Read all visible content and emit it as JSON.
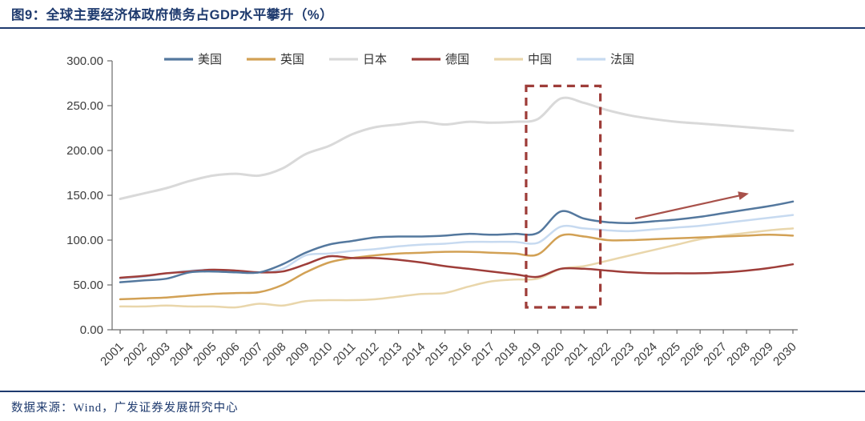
{
  "header": {
    "title": "图9：全球主要经济体政府债务占GDP水平攀升（%）"
  },
  "footer": {
    "source": "数据来源：Wind，广发证券发展研究中心"
  },
  "chart_data": {
    "type": "line",
    "title": "全球主要经济体政府债务占GDP水平攀升（%）",
    "figure_label": "图9",
    "xlabel": "",
    "ylabel": "",
    "ylim": [
      0,
      300
    ],
    "y_ticks": [
      0,
      50,
      100,
      150,
      200,
      250,
      300
    ],
    "y_tick_labels": [
      "0.00",
      "50.00",
      "100.00",
      "150.00",
      "200.00",
      "250.00",
      "300.00"
    ],
    "grid": false,
    "legend_position": "top",
    "x": [
      2001,
      2002,
      2003,
      2004,
      2005,
      2006,
      2007,
      2008,
      2009,
      2010,
      2011,
      2012,
      2013,
      2014,
      2015,
      2016,
      2017,
      2018,
      2019,
      2020,
      2021,
      2022,
      2023,
      2024,
      2025,
      2026,
      2027,
      2028,
      2029,
      2030
    ],
    "series": [
      {
        "id": "us",
        "name": "美国",
        "color": "#54789e",
        "values": [
          53,
          55,
          57,
          64,
          65,
          64,
          64,
          73,
          86,
          95,
          99,
          103,
          104,
          104,
          105,
          107,
          106,
          107,
          108,
          132,
          124,
          120,
          119,
          121,
          123,
          126,
          130,
          134,
          138,
          143
        ]
      },
      {
        "id": "uk",
        "name": "英国",
        "color": "#d2a155",
        "values": [
          34,
          35,
          36,
          38,
          40,
          41,
          42,
          50,
          64,
          75,
          80,
          83,
          85,
          86,
          87,
          87,
          86,
          85,
          84,
          105,
          104,
          100,
          100,
          101,
          102,
          103,
          104,
          105,
          106,
          105
        ]
      },
      {
        "id": "japan",
        "name": "日本",
        "color": "#d9d9d9",
        "values": [
          146,
          152,
          158,
          166,
          172,
          174,
          172,
          180,
          196,
          205,
          218,
          226,
          229,
          232,
          229,
          232,
          231,
          232,
          235,
          258,
          253,
          245,
          239,
          235,
          232,
          230,
          228,
          226,
          224,
          222
        ]
      },
      {
        "id": "germany",
        "name": "德国",
        "color": "#9e3d39",
        "values": [
          58,
          60,
          63,
          65,
          67,
          66,
          64,
          65,
          73,
          82,
          80,
          80,
          78,
          75,
          71,
          68,
          65,
          62,
          59,
          68,
          68,
          66,
          64,
          63,
          63,
          63,
          64,
          66,
          69,
          73
        ]
      },
      {
        "id": "china",
        "name": "中国",
        "color": "#e9d6ab",
        "values": [
          26,
          26,
          27,
          26,
          26,
          25,
          29,
          27,
          32,
          33,
          33,
          34,
          37,
          40,
          41,
          48,
          54,
          56,
          57,
          68,
          71,
          77,
          83,
          89,
          95,
          101,
          105,
          108,
          111,
          113
        ]
      },
      {
        "id": "france",
        "name": "法国",
        "color": "#c7daf0",
        "values": [
          57,
          59,
          63,
          66,
          67,
          64,
          64,
          68,
          83,
          85,
          88,
          90,
          93,
          95,
          96,
          98,
          98,
          98,
          97,
          115,
          113,
          111,
          110,
          112,
          114,
          116,
          119,
          122,
          125,
          128
        ]
      }
    ],
    "draw_order": [
      "japan",
      "china",
      "france",
      "uk",
      "germany",
      "us"
    ],
    "annotations": {
      "highlight_box": {
        "x0": 2018.5,
        "x1": 2021.7,
        "y0": 25,
        "y1": 272,
        "color": "#9e3d39"
      },
      "trend_arrow": {
        "x0": 2023.2,
        "y0": 124,
        "x1": 2028.1,
        "y1": 152,
        "color": "#a8514a"
      }
    }
  }
}
